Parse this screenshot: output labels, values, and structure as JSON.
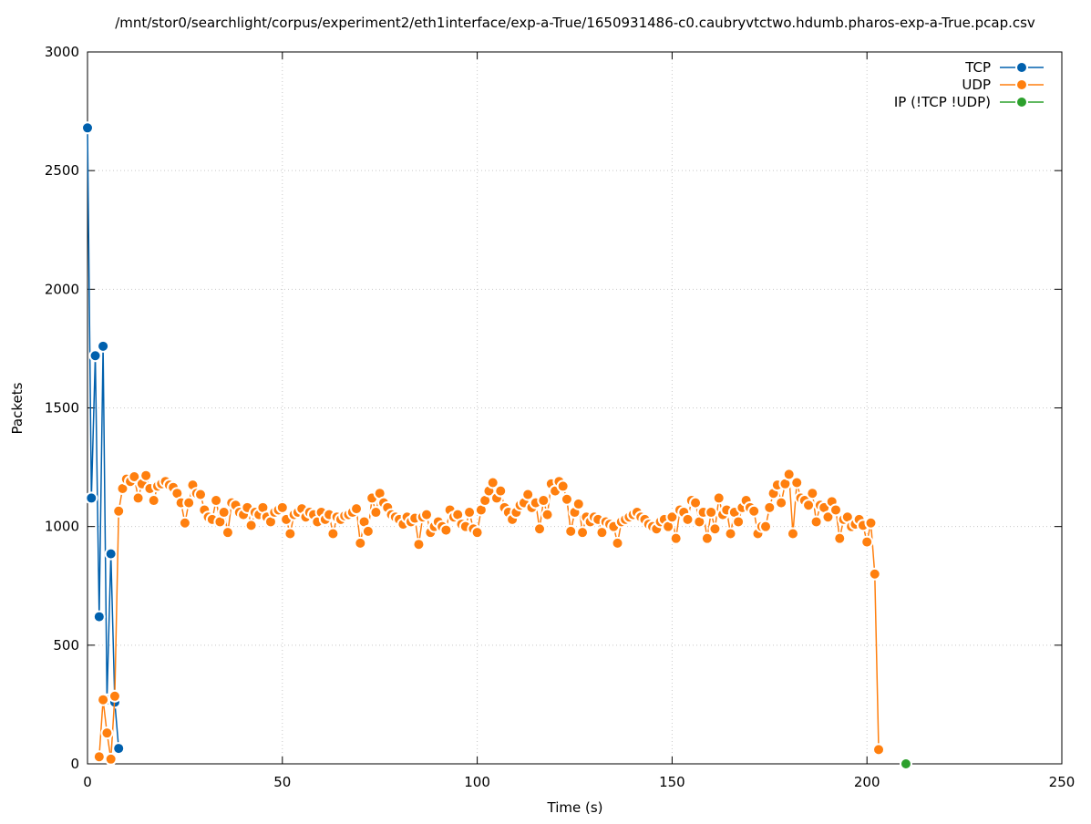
{
  "chart_data": {
    "type": "line",
    "title": "/mnt/stor0/searchlight/corpus/experiment2/eth1interface/exp-a-True/1650931486-c0.caubryvtctwo.hdumb.pharos-exp-a-True.pcap.csv",
    "x_label": "Time (s)",
    "y_label": "Packets",
    "xlim": [
      0,
      250
    ],
    "xticks": [
      0,
      50,
      100,
      150,
      200,
      250
    ],
    "ylim": [
      0,
      3000
    ],
    "yticks": [
      0,
      500,
      1000,
      1500,
      2000,
      2500,
      3000
    ],
    "grid": true,
    "legend": "top-right",
    "series": [
      {
        "name": "TCP",
        "color": "#0060ad",
        "x": [
          0,
          1,
          2,
          3,
          4,
          5,
          6,
          7,
          8
        ],
        "values": [
          2680,
          1120,
          1720,
          620,
          1760,
          270,
          885,
          260,
          65
        ]
      },
      {
        "name": "UDP",
        "color": "#ff7f0e",
        "x": [
          3,
          4,
          5,
          6,
          7,
          8,
          9,
          10,
          11,
          12,
          13,
          14,
          15,
          16,
          17,
          18,
          19,
          20,
          21,
          22,
          23,
          24,
          25,
          26,
          27,
          28,
          29,
          30,
          31,
          32,
          33,
          34,
          35,
          36,
          37,
          38,
          39,
          40,
          41,
          42,
          43,
          44,
          45,
          46,
          47,
          48,
          49,
          50,
          51,
          52,
          53,
          54,
          55,
          56,
          57,
          58,
          59,
          60,
          61,
          62,
          63,
          64,
          65,
          66,
          67,
          68,
          69,
          70,
          71,
          72,
          73,
          74,
          75,
          76,
          77,
          78,
          79,
          80,
          81,
          82,
          83,
          84,
          85,
          86,
          87,
          88,
          89,
          90,
          91,
          92,
          93,
          94,
          95,
          96,
          97,
          98,
          99,
          100,
          101,
          102,
          103,
          104,
          105,
          106,
          107,
          108,
          109,
          110,
          111,
          112,
          113,
          114,
          115,
          116,
          117,
          118,
          119,
          120,
          121,
          122,
          123,
          124,
          125,
          126,
          127,
          128,
          129,
          130,
          131,
          132,
          133,
          134,
          135,
          136,
          137,
          138,
          139,
          140,
          141,
          142,
          143,
          144,
          145,
          146,
          147,
          148,
          149,
          150,
          151,
          152,
          153,
          154,
          155,
          156,
          157,
          158,
          159,
          160,
          161,
          162,
          163,
          164,
          165,
          166,
          167,
          168,
          169,
          170,
          171,
          172,
          173,
          174,
          175,
          176,
          177,
          178,
          179,
          180,
          181,
          182,
          183,
          184,
          185,
          186,
          187,
          188,
          189,
          190,
          191,
          192,
          193,
          194,
          195,
          196,
          197,
          198,
          199,
          200,
          201,
          202,
          203
        ],
        "values": [
          30,
          270,
          130,
          20,
          285,
          1065,
          1160,
          1200,
          1190,
          1210,
          1120,
          1180,
          1215,
          1160,
          1110,
          1170,
          1180,
          1190,
          1175,
          1165,
          1140,
          1100,
          1015,
          1100,
          1175,
          1140,
          1135,
          1070,
          1040,
          1030,
          1110,
          1020,
          1060,
          975,
          1100,
          1090,
          1060,
          1050,
          1080,
          1005,
          1060,
          1050,
          1080,
          1040,
          1020,
          1060,
          1070,
          1080,
          1030,
          970,
          1050,
          1060,
          1075,
          1040,
          1060,
          1050,
          1020,
          1060,
          1030,
          1050,
          970,
          1040,
          1030,
          1045,
          1050,
          1060,
          1075,
          930,
          1020,
          980,
          1120,
          1060,
          1140,
          1100,
          1080,
          1050,
          1040,
          1030,
          1010,
          1040,
          1020,
          1035,
          925,
          1040,
          1050,
          975,
          1000,
          1020,
          1000,
          985,
          1070,
          1040,
          1050,
          1010,
          1000,
          1060,
          990,
          975,
          1070,
          1110,
          1150,
          1185,
          1120,
          1150,
          1080,
          1060,
          1030,
          1060,
          1090,
          1100,
          1135,
          1080,
          1100,
          990,
          1110,
          1050,
          1180,
          1150,
          1190,
          1170,
          1115,
          980,
          1060,
          1095,
          975,
          1040,
          1020,
          1040,
          1030,
          975,
          1020,
          1010,
          1000,
          930,
          1020,
          1030,
          1040,
          1050,
          1060,
          1040,
          1030,
          1010,
          1000,
          990,
          1020,
          1030,
          1000,
          1040,
          950,
          1070,
          1060,
          1030,
          1110,
          1100,
          1020,
          1060,
          950,
          1060,
          990,
          1120,
          1050,
          1070,
          970,
          1060,
          1020,
          1080,
          1110,
          1080,
          1065,
          970,
          1000,
          1000,
          1080,
          1140,
          1175,
          1100,
          1180,
          1220,
          970,
          1185,
          1120,
          1110,
          1090,
          1140,
          1020,
          1090,
          1080,
          1040,
          1105,
          1070,
          950,
          1030,
          1040,
          1000,
          1010,
          1030,
          1005,
          935,
          1015,
          800,
          60
        ]
      },
      {
        "name": "IP (!TCP  !UDP)",
        "color": "#2ca02c",
        "x": [
          210
        ],
        "values": [
          0
        ]
      }
    ]
  }
}
